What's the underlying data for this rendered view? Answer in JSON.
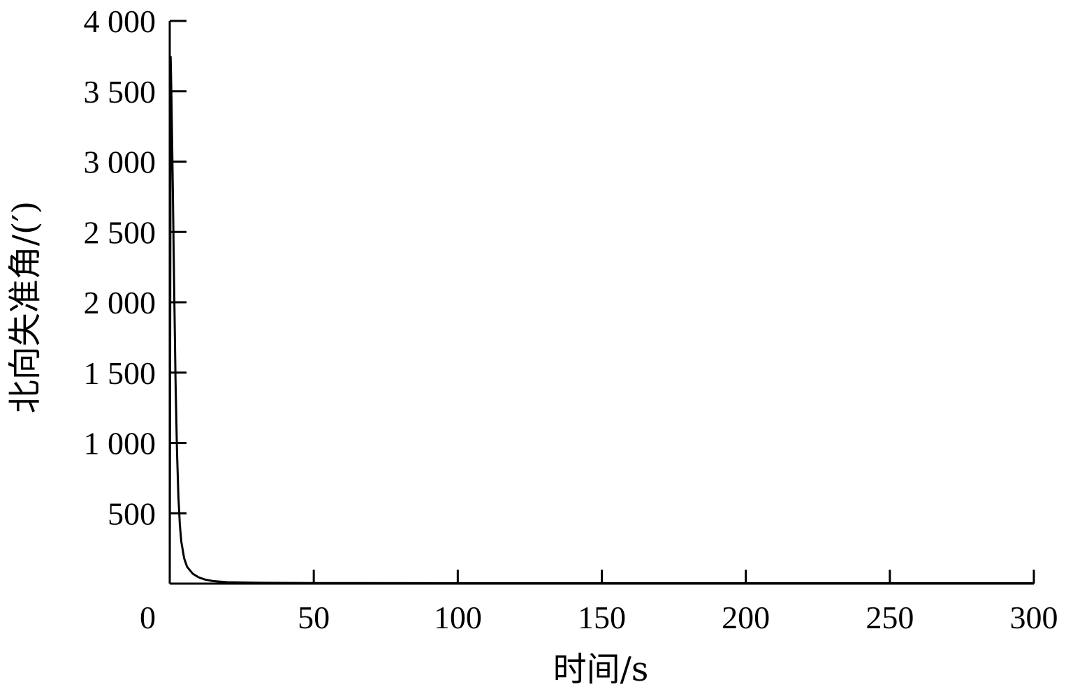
{
  "chart_data": {
    "type": "line",
    "xlabel": "时间/s",
    "ylabel": "北向失准角/(′)",
    "xlim": [
      0,
      300
    ],
    "ylim": [
      0,
      4000
    ],
    "x_ticks": [
      0,
      50,
      100,
      150,
      200,
      250,
      300
    ],
    "x_tick_labels": [
      "0",
      "50",
      "100",
      "150",
      "200",
      "250",
      "300"
    ],
    "y_ticks": [
      500,
      1000,
      1500,
      2000,
      2500,
      3000,
      3500,
      4000
    ],
    "y_tick_labels": [
      "500",
      "1 000",
      "1 500",
      "2 000",
      "2 500",
      "3 000",
      "3 500",
      "4 000"
    ],
    "grid": false,
    "series": [
      {
        "x": [
          0,
          0.3,
          0.6,
          1.0,
          1.5,
          2.0,
          2.5,
          3.0,
          3.5,
          4.0,
          5.0,
          6.0,
          8.0,
          10.0,
          12.0,
          15.0,
          20.0,
          30.0,
          50.0,
          100.0,
          150.0,
          200.0,
          250.0,
          300.0
        ],
        "values": [
          0,
          3750,
          3450,
          2900,
          2150,
          1450,
          950,
          620,
          420,
          300,
          180,
          120,
          70,
          45,
          30,
          18,
          10,
          6,
          4,
          3,
          3,
          3,
          3,
          3
        ],
        "color": "#000000"
      }
    ]
  }
}
